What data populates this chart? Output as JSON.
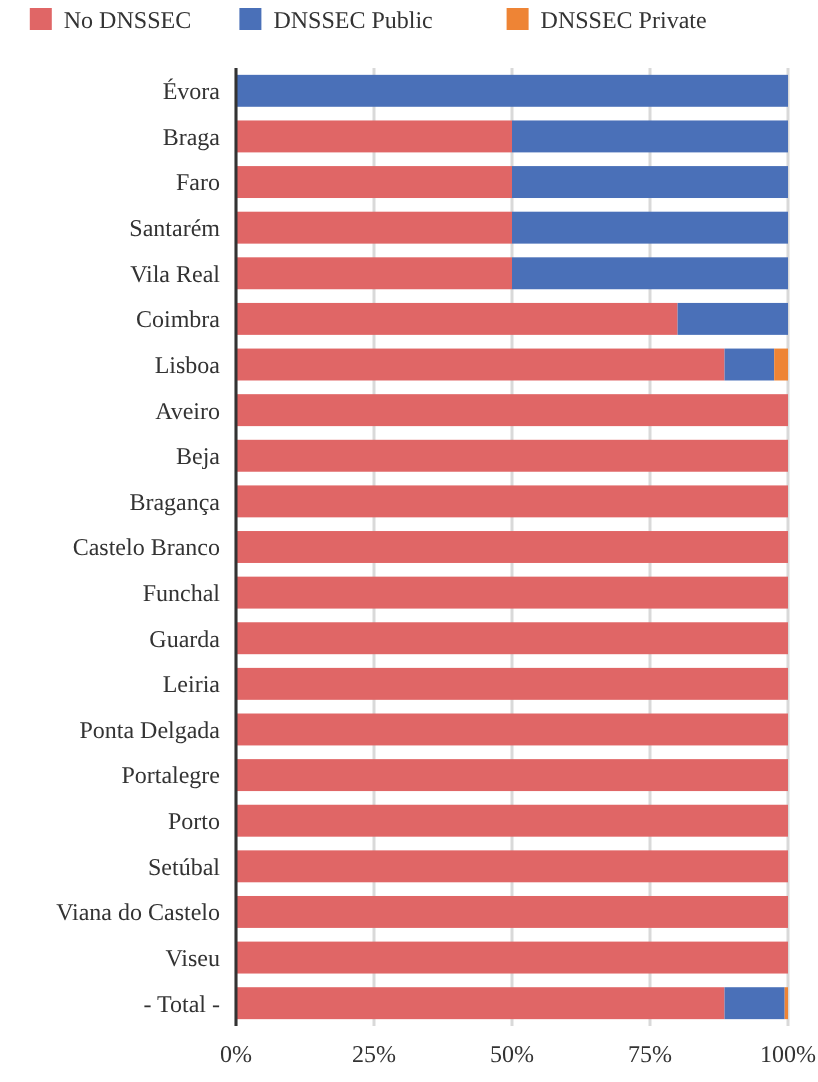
{
  "chart_data": {
    "type": "bar",
    "orientation": "horizontal",
    "stacked": true,
    "legend": "top",
    "grid": "x",
    "categories": [
      "Évora",
      "Braga",
      "Faro",
      "Santarém",
      "Vila Real",
      "Coimbra",
      "Lisboa",
      "Aveiro",
      "Beja",
      "Bragança",
      "Castelo Branco",
      "Funchal",
      "Guarda",
      "Leiria",
      "Ponta Delgada",
      "Portalegre",
      "Porto",
      "Setúbal",
      "Viana do Castelo",
      "Viseu",
      "- Total -"
    ],
    "series": [
      {
        "name": "No DNSSEC",
        "color": "#e06666",
        "values": [
          0,
          50,
          50,
          50,
          50,
          80,
          88.5,
          100,
          100,
          100,
          100,
          100,
          100,
          100,
          100,
          100,
          100,
          100,
          100,
          100,
          88.5
        ]
      },
      {
        "name": "DNSSEC Public",
        "color": "#4a70b8",
        "values": [
          100,
          50,
          50,
          50,
          50,
          20,
          9,
          0,
          0,
          0,
          0,
          0,
          0,
          0,
          0,
          0,
          0,
          0,
          0,
          0,
          10.9
        ]
      },
      {
        "name": "DNSSEC Private",
        "color": "#ee8435",
        "values": [
          0,
          0,
          0,
          0,
          0,
          0,
          2.5,
          0,
          0,
          0,
          0,
          0,
          0,
          0,
          0,
          0,
          0,
          0,
          0,
          0,
          0.6
        ]
      }
    ],
    "xlim": [
      0,
      100
    ],
    "xticks": [
      {
        "value": 0,
        "label": "0%"
      },
      {
        "value": 25,
        "label": "25%"
      },
      {
        "value": 50,
        "label": "50%"
      },
      {
        "value": 75,
        "label": "75%"
      },
      {
        "value": 100,
        "label": "100%"
      }
    ]
  }
}
